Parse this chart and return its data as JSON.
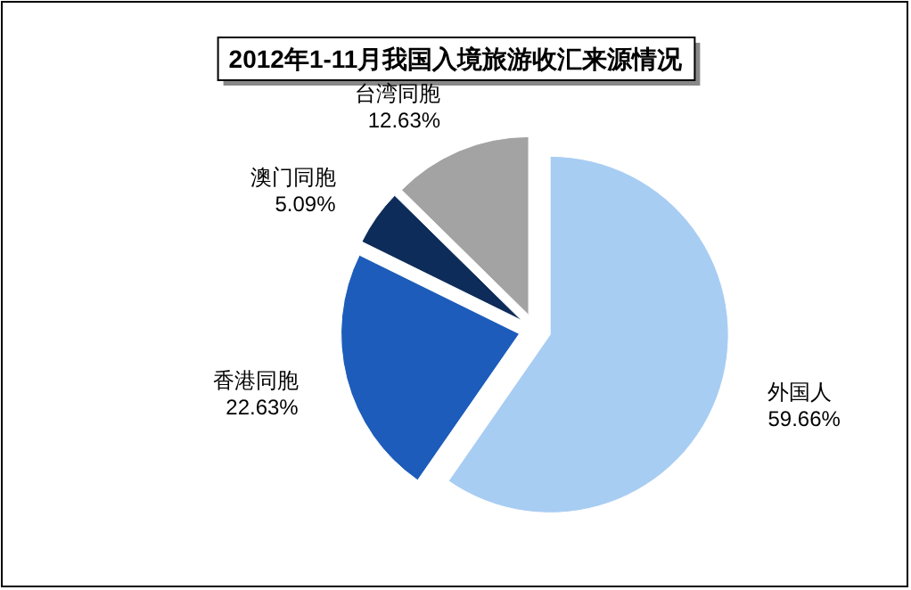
{
  "chart_data": {
    "type": "pie",
    "title": "2012年1-11月我国入境旅游收汇来源情况",
    "categories": [
      "外国人",
      "香港同胞",
      "澳门同胞",
      "台湾同胞"
    ],
    "values": [
      59.66,
      22.63,
      5.09,
      12.63
    ],
    "colors": [
      "#a8cdf3",
      "#1d5cba",
      "#0d2c5a",
      "#a3a3a3"
    ],
    "value_labels": [
      "59.66%",
      "22.63%",
      "5.09%",
      "12.63%"
    ]
  }
}
